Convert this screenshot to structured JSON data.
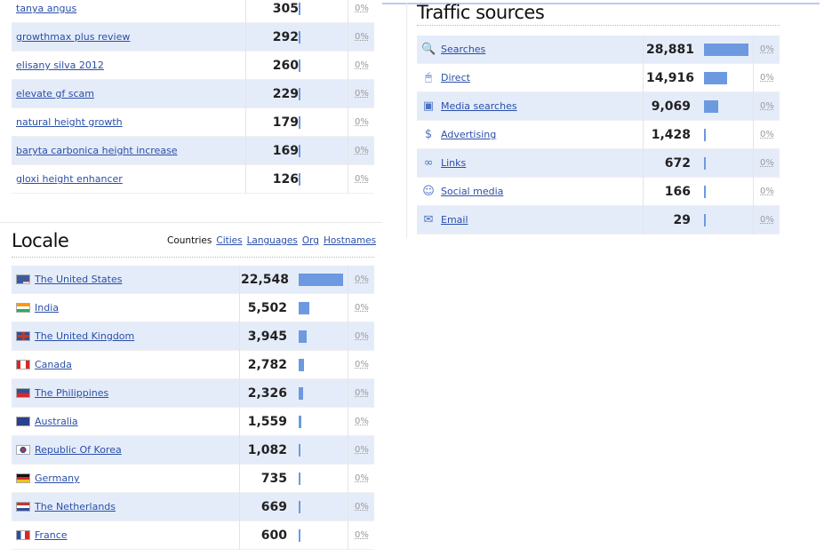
{
  "keywords": {
    "rows": [
      {
        "label": "tanya angus",
        "count": "305",
        "percent": "0%",
        "share": 0.004
      },
      {
        "label": "growthmax plus review",
        "count": "292",
        "percent": "0%",
        "share": 0.004
      },
      {
        "label": "elisany silva 2012",
        "count": "260",
        "percent": "0%",
        "share": 0.004
      },
      {
        "label": "elevate gf scam",
        "count": "229",
        "percent": "0%",
        "share": 0.003
      },
      {
        "label": "natural height growth",
        "count": "179",
        "percent": "0%",
        "share": 0.003
      },
      {
        "label": "baryta carbonica height increase",
        "count": "169",
        "percent": "0%",
        "share": 0.003
      },
      {
        "label": "gloxi height enhancer",
        "count": "126",
        "percent": "0%",
        "share": 0.002
      }
    ]
  },
  "locale": {
    "title": "Locale",
    "tabs": [
      {
        "label": "Countries",
        "active": true
      },
      {
        "label": "Cities",
        "active": false
      },
      {
        "label": "Languages",
        "active": false
      },
      {
        "label": "Org",
        "active": false
      },
      {
        "label": "Hostnames",
        "active": false
      }
    ],
    "rows": [
      {
        "label": "The United States",
        "count": "22,548",
        "percent": "0%",
        "share": 1.0,
        "flag": "us"
      },
      {
        "label": "India",
        "count": "5,502",
        "percent": "0%",
        "share": 0.244,
        "flag": "in"
      },
      {
        "label": "The United Kingdom",
        "count": "3,945",
        "percent": "0%",
        "share": 0.175,
        "flag": "gb"
      },
      {
        "label": "Canada",
        "count": "2,782",
        "percent": "0%",
        "share": 0.123,
        "flag": "ca"
      },
      {
        "label": "The Philippines",
        "count": "2,326",
        "percent": "0%",
        "share": 0.103,
        "flag": "ph"
      },
      {
        "label": "Australia",
        "count": "1,559",
        "percent": "0%",
        "share": 0.069,
        "flag": "au"
      },
      {
        "label": "Republic Of Korea",
        "count": "1,082",
        "percent": "0%",
        "share": 0.048,
        "flag": "kr"
      },
      {
        "label": "Germany",
        "count": "735",
        "percent": "0%",
        "share": 0.033,
        "flag": "de"
      },
      {
        "label": "The Netherlands",
        "count": "669",
        "percent": "0%",
        "share": 0.03,
        "flag": "nl"
      },
      {
        "label": "France",
        "count": "600",
        "percent": "0%",
        "share": 0.027,
        "flag": "fr"
      }
    ]
  },
  "traffic": {
    "title": "Traffic sources",
    "rows": [
      {
        "label": "Searches",
        "count": "28,881",
        "percent": "0%",
        "share": 1.0,
        "icon": "magnifier-icon"
      },
      {
        "label": "Direct",
        "count": "14,916",
        "percent": "0%",
        "share": 0.516,
        "icon": "mouse-icon"
      },
      {
        "label": "Media searches",
        "count": "9,069",
        "percent": "0%",
        "share": 0.314,
        "icon": "tv-icon"
      },
      {
        "label": "Advertising",
        "count": "1,428",
        "percent": "0%",
        "share": 0.049,
        "icon": "money-icon"
      },
      {
        "label": "Links",
        "count": "672",
        "percent": "0%",
        "share": 0.023,
        "icon": "chain-link-icon"
      },
      {
        "label": "Social media",
        "count": "166",
        "percent": "0%",
        "share": 0.006,
        "icon": "people-icon"
      },
      {
        "label": "Email",
        "count": "29",
        "percent": "0%",
        "share": 0.001,
        "icon": "envelope-icon"
      }
    ]
  },
  "colors": {
    "bar": "#6d99e0",
    "row_alt": "#e5ecf9",
    "link": "#2a4fa8"
  }
}
